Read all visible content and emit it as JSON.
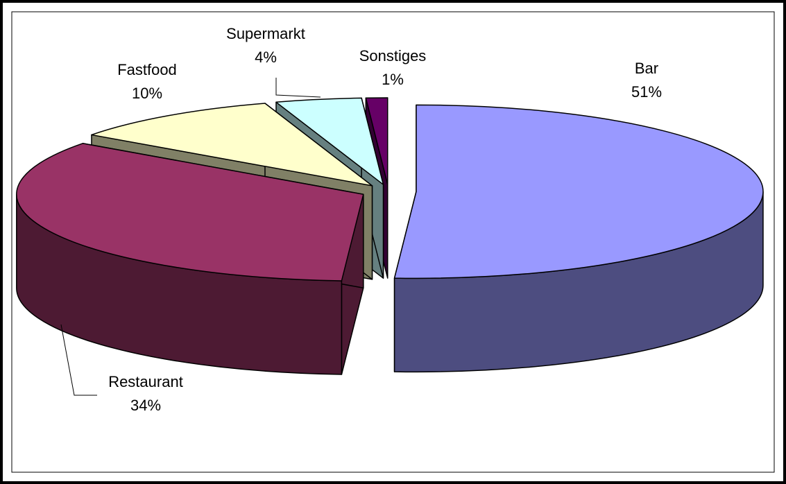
{
  "chart_data": {
    "type": "pie",
    "view": "3d",
    "exploded": true,
    "categories": [
      "Bar",
      "Restaurant",
      "Fastfood",
      "Supermarkt",
      "Sonstiges"
    ],
    "values": [
      51,
      34,
      10,
      4,
      1
    ],
    "value_labels": [
      "51%",
      "34%",
      "10%",
      "4%",
      "1%"
    ],
    "colors": [
      "#9999ff",
      "#993366",
      "#ffffcc",
      "#ccffff",
      "#660066"
    ],
    "side_colors": [
      "#4d4d80",
      "#4d1a33",
      "#808066",
      "#668080",
      "#330033"
    ]
  }
}
